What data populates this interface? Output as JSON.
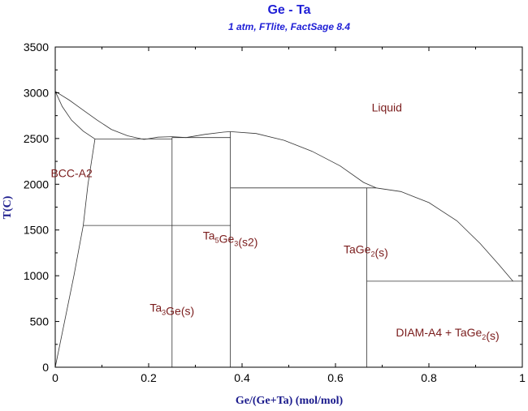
{
  "chart_data": {
    "type": "phase-diagram",
    "title": "Ge - Ta",
    "subtitle": "1 atm, FTlite, FactSage 8.4",
    "xlabel": "Ge/(Ge+Ta) (mol/mol)",
    "ylabel": "T(C)",
    "xlim": [
      0,
      1
    ],
    "ylim": [
      0,
      3500
    ],
    "xticks": [
      0,
      0.2,
      0.4,
      0.6,
      0.8,
      1
    ],
    "xtick_labels": [
      "0",
      "0.2",
      "0.4",
      "0.6",
      "0.8",
      "1"
    ],
    "yticks": [
      0,
      500,
      1000,
      1500,
      2000,
      2500,
      3000,
      3500
    ],
    "ytick_labels": [
      "0",
      "500",
      "1000",
      "1500",
      "2000",
      "2500",
      "3000",
      "3500"
    ],
    "curves": [
      {
        "name": "liquidus-bcc",
        "points": [
          [
            0,
            3015
          ],
          [
            0.03,
            2920
          ],
          [
            0.06,
            2810
          ],
          [
            0.09,
            2700
          ],
          [
            0.12,
            2600
          ],
          [
            0.155,
            2530
          ],
          [
            0.19,
            2490
          ]
        ]
      },
      {
        "name": "solidus-bcc",
        "points": [
          [
            0,
            3015
          ],
          [
            0.015,
            2850
          ],
          [
            0.035,
            2700
          ],
          [
            0.06,
            2580
          ],
          [
            0.085,
            2495
          ]
        ]
      },
      {
        "name": "bcc-solvus",
        "points": [
          [
            0,
            0
          ],
          [
            0.02,
            500
          ],
          [
            0.04,
            1000
          ],
          [
            0.06,
            1550
          ],
          [
            0.07,
            2000
          ],
          [
            0.085,
            2495
          ]
        ]
      },
      {
        "name": "liquidus-ta5ge3",
        "points": [
          [
            0.19,
            2490
          ],
          [
            0.22,
            2515
          ],
          [
            0.25,
            2520
          ],
          [
            0.28,
            2510
          ]
        ]
      },
      {
        "name": "liquidus-ta5ge3-right",
        "points": [
          [
            0.28,
            2510
          ],
          [
            0.32,
            2545
          ],
          [
            0.36,
            2570
          ],
          [
            0.375,
            2575
          ]
        ]
      },
      {
        "name": "liquidus-dome",
        "points": [
          [
            0.375,
            2575
          ],
          [
            0.43,
            2555
          ],
          [
            0.49,
            2480
          ],
          [
            0.55,
            2360
          ],
          [
            0.61,
            2200
          ],
          [
            0.66,
            2020
          ],
          [
            0.687,
            1960
          ]
        ]
      },
      {
        "name": "liquidus-tage2",
        "points": [
          [
            0.687,
            1960
          ],
          [
            0.74,
            1920
          ],
          [
            0.8,
            1800
          ],
          [
            0.86,
            1600
          ],
          [
            0.91,
            1350
          ],
          [
            0.95,
            1120
          ],
          [
            0.98,
            940
          ]
        ]
      },
      {
        "name": "tie-2495",
        "points": [
          [
            0.085,
            2495
          ],
          [
            0.25,
            2495
          ]
        ]
      },
      {
        "name": "tie-2510",
        "points": [
          [
            0.25,
            2510
          ],
          [
            0.375,
            2510
          ]
        ]
      },
      {
        "name": "tie-1550",
        "points": [
          [
            0.06,
            1550
          ],
          [
            0.375,
            1550
          ]
        ]
      },
      {
        "name": "tie-1960",
        "points": [
          [
            0.375,
            1960
          ],
          [
            0.687,
            1960
          ]
        ]
      },
      {
        "name": "tie-940",
        "points": [
          [
            0.667,
            940
          ],
          [
            1,
            940
          ]
        ]
      },
      {
        "name": "ta3ge-line",
        "points": [
          [
            0.25,
            0
          ],
          [
            0.25,
            2510
          ]
        ]
      },
      {
        "name": "ta5ge3-line",
        "points": [
          [
            0.375,
            0
          ],
          [
            0.375,
            2575
          ]
        ]
      },
      {
        "name": "tage2-line",
        "points": [
          [
            0.667,
            0
          ],
          [
            0.667,
            1960
          ]
        ]
      }
    ],
    "region_labels": [
      {
        "name": "liquid",
        "parts": [
          {
            "t": "Liquid"
          }
        ],
        "x": 0.71,
        "y": 2840
      },
      {
        "name": "bcc-a2",
        "parts": [
          {
            "t": "BCC-A2"
          }
        ],
        "x": 0.035,
        "y": 2120
      },
      {
        "name": "ta5ge3",
        "parts": [
          {
            "t": "Ta"
          },
          {
            "t": "5",
            "sub": true
          },
          {
            "t": "Ge"
          },
          {
            "t": "3",
            "sub": true
          },
          {
            "t": "(s2)"
          }
        ],
        "x": 0.375,
        "y": 1440
      },
      {
        "name": "tage2",
        "parts": [
          {
            "t": "TaGe"
          },
          {
            "t": "2",
            "sub": true
          },
          {
            "t": "(s)"
          }
        ],
        "x": 0.665,
        "y": 1290
      },
      {
        "name": "ta3ge",
        "parts": [
          {
            "t": "Ta"
          },
          {
            "t": "3",
            "sub": true
          },
          {
            "t": "Ge(s)"
          }
        ],
        "x": 0.25,
        "y": 650
      },
      {
        "name": "diam-a4-tage2",
        "parts": [
          {
            "t": "DIAM-A4 + TaGe"
          },
          {
            "t": "2",
            "sub": true
          },
          {
            "t": "(s)"
          }
        ],
        "x": 0.84,
        "y": 380
      }
    ]
  }
}
